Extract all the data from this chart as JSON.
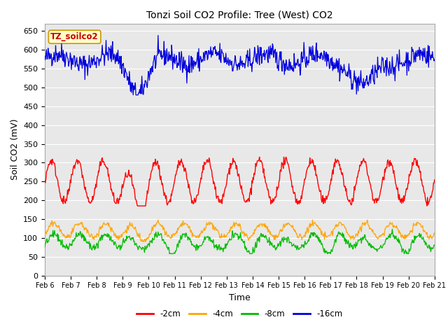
{
  "title": "Tonzi Soil CO2 Profile: Tree (West) CO2",
  "xlabel": "Time",
  "ylabel": "Soil CO2 (mV)",
  "ylim": [
    0,
    670
  ],
  "yticks": [
    0,
    50,
    100,
    150,
    200,
    250,
    300,
    350,
    400,
    450,
    500,
    550,
    600,
    650
  ],
  "xstart_day": 6,
  "xend_day": 21,
  "colors": {
    "-2cm": "#ff0000",
    "-4cm": "#ffa500",
    "-8cm": "#00bb00",
    "-16cm": "#0000dd"
  },
  "legend_label": "TZ_soilco2",
  "legend_box_facecolor": "#ffffcc",
  "legend_box_edgecolor": "#cc9900",
  "fig_bg_color": "#ffffff",
  "plot_bg_color": "#e8e8e8",
  "n_points": 720,
  "seed": 42
}
